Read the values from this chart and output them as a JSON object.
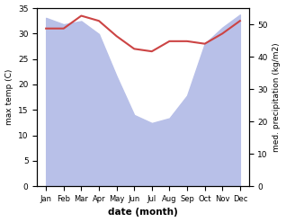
{
  "months": [
    "Jan",
    "Feb",
    "Mar",
    "Apr",
    "May",
    "Jun",
    "Jul",
    "Aug",
    "Sep",
    "Oct",
    "Nov",
    "Dec"
  ],
  "max_temp": [
    31.0,
    31.0,
    33.5,
    32.5,
    29.5,
    27.0,
    26.5,
    28.5,
    28.5,
    28.0,
    30.0,
    32.5
  ],
  "precipitation": [
    52.0,
    50.0,
    51.0,
    47.0,
    34.0,
    22.0,
    19.5,
    21.0,
    28.0,
    44.0,
    49.0,
    53.0
  ],
  "temp_color": "#cc4444",
  "precip_fill_color": "#b8c0e8",
  "xlabel": "date (month)",
  "ylabel_left": "max temp (C)",
  "ylabel_right": "med. precipitation (kg/m2)",
  "ylim_left": [
    0,
    35
  ],
  "ylim_right": [
    0,
    55
  ],
  "yticks_left": [
    0,
    5,
    10,
    15,
    20,
    25,
    30,
    35
  ],
  "yticks_right": [
    0,
    10,
    20,
    30,
    40,
    50
  ],
  "background_color": "#ffffff"
}
